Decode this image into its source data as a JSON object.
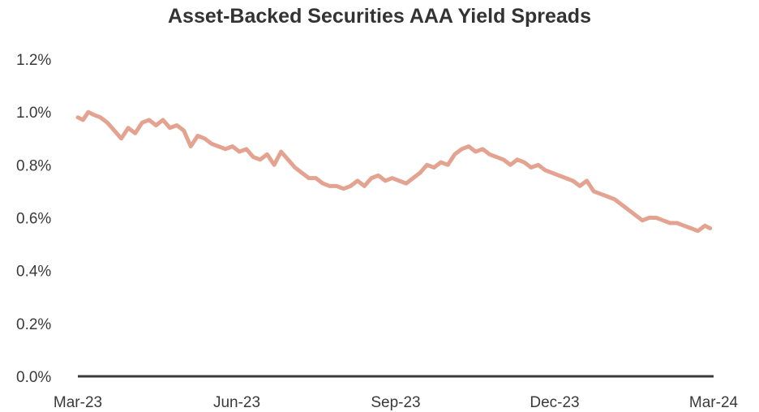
{
  "chart_data": {
    "type": "line",
    "title": "Asset-Backed Securities AAA Yield Spreads",
    "xlabel": "",
    "ylabel": "",
    "x_ticks": [
      "Mar-23",
      "Jun-23",
      "Sep-23",
      "Dec-23",
      "Mar-24"
    ],
    "y_ticks": [
      "0.0%",
      "0.2%",
      "0.4%",
      "0.6%",
      "0.8%",
      "1.0%",
      "1.2%"
    ],
    "ylim": [
      0,
      1.2
    ],
    "xlim": [
      "2023-03-01",
      "2024-03-01"
    ],
    "grid": false,
    "legend": "none",
    "series": [
      {
        "color": "#e3a390",
        "x": [
          "2023-03-01",
          "2023-03-04",
          "2023-03-07",
          "2023-03-10",
          "2023-03-14",
          "2023-03-18",
          "2023-03-22",
          "2023-03-26",
          "2023-03-30",
          "2023-04-03",
          "2023-04-07",
          "2023-04-11",
          "2023-04-15",
          "2023-04-19",
          "2023-04-23",
          "2023-04-27",
          "2023-05-01",
          "2023-05-05",
          "2023-05-09",
          "2023-05-13",
          "2023-05-17",
          "2023-05-21",
          "2023-05-25",
          "2023-05-29",
          "2023-06-02",
          "2023-06-06",
          "2023-06-10",
          "2023-06-14",
          "2023-06-18",
          "2023-06-22",
          "2023-06-26",
          "2023-06-30",
          "2023-07-04",
          "2023-07-08",
          "2023-07-12",
          "2023-07-16",
          "2023-07-20",
          "2023-07-24",
          "2023-07-28",
          "2023-08-01",
          "2023-08-05",
          "2023-08-09",
          "2023-08-13",
          "2023-08-17",
          "2023-08-21",
          "2023-08-25",
          "2023-08-29",
          "2023-09-02",
          "2023-09-06",
          "2023-09-10",
          "2023-09-14",
          "2023-09-18",
          "2023-09-22",
          "2023-09-26",
          "2023-09-30",
          "2023-10-04",
          "2023-10-08",
          "2023-10-12",
          "2023-10-16",
          "2023-10-20",
          "2023-10-24",
          "2023-10-28",
          "2023-11-01",
          "2023-11-05",
          "2023-11-09",
          "2023-11-13",
          "2023-11-17",
          "2023-11-21",
          "2023-11-25",
          "2023-11-29",
          "2023-12-03",
          "2023-12-07",
          "2023-12-11",
          "2023-12-15",
          "2023-12-19",
          "2023-12-23",
          "2023-12-27",
          "2023-12-31",
          "2024-01-04",
          "2024-01-08",
          "2024-01-12",
          "2024-01-16",
          "2024-01-20",
          "2024-01-24",
          "2024-01-28",
          "2024-02-01",
          "2024-02-05",
          "2024-02-09",
          "2024-02-13",
          "2024-02-17",
          "2024-02-21",
          "2024-02-25",
          "2024-02-28"
        ],
        "y": [
          0.98,
          0.97,
          1.0,
          0.99,
          0.98,
          0.96,
          0.93,
          0.9,
          0.94,
          0.92,
          0.96,
          0.97,
          0.95,
          0.97,
          0.94,
          0.95,
          0.93,
          0.87,
          0.91,
          0.9,
          0.88,
          0.87,
          0.86,
          0.87,
          0.85,
          0.86,
          0.83,
          0.82,
          0.84,
          0.8,
          0.85,
          0.82,
          0.79,
          0.77,
          0.75,
          0.75,
          0.73,
          0.72,
          0.72,
          0.71,
          0.72,
          0.74,
          0.72,
          0.75,
          0.76,
          0.74,
          0.75,
          0.74,
          0.73,
          0.75,
          0.77,
          0.8,
          0.79,
          0.81,
          0.8,
          0.84,
          0.86,
          0.87,
          0.85,
          0.86,
          0.84,
          0.83,
          0.82,
          0.8,
          0.82,
          0.81,
          0.79,
          0.8,
          0.78,
          0.77,
          0.76,
          0.75,
          0.74,
          0.72,
          0.74,
          0.7,
          0.69,
          0.68,
          0.67,
          0.65,
          0.63,
          0.61,
          0.59,
          0.6,
          0.6,
          0.59,
          0.58,
          0.58,
          0.57,
          0.56,
          0.55,
          0.57,
          0.56
        ]
      }
    ]
  }
}
